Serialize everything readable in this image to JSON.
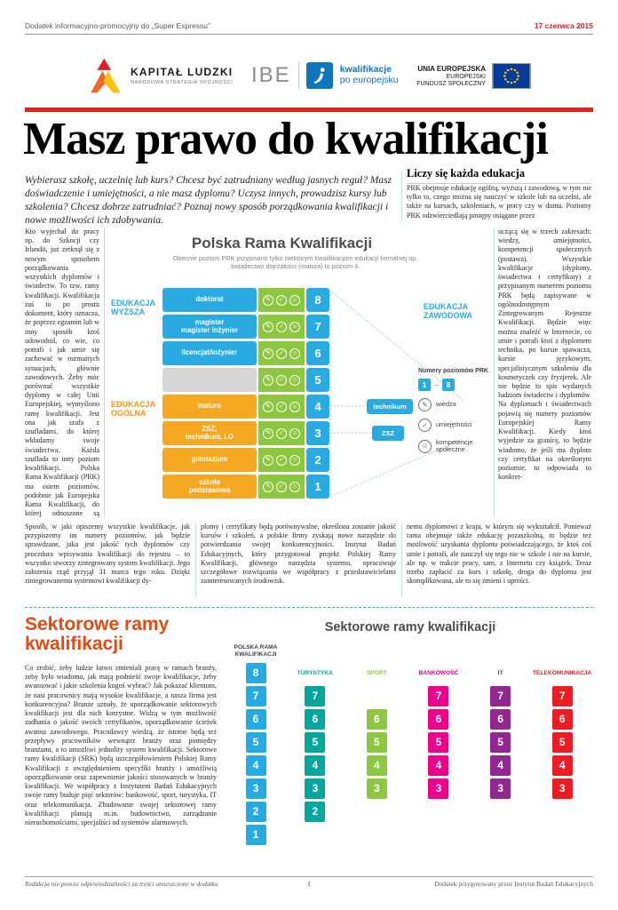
{
  "topbar": {
    "supplement": "Dodatek informacyjno-promocyjny do „Super Expressu”",
    "date": "17 czerwca 2015"
  },
  "logos": {
    "kapital_ludzki": {
      "title": "KAPITAŁ LUDZKI",
      "subtitle": "NARODOWA STRATEGIA SPÓJNOŚCI"
    },
    "ibe": {
      "name": "IBE",
      "tagline_line1": "kwalifikacje",
      "tagline_line2": "po europejsku"
    },
    "ue": {
      "line1": "UNIA EUROPEJSKA",
      "line2": "EUROPEJSKI",
      "line3": "FUNDUSZ SPOŁECZNY"
    }
  },
  "headline": "Masz prawo do kwalifikacji",
  "lead": "Wybierasz szkołę, uczelnię lub kurs? Chcesz być zatrudniany według jasnych reguł? Masz doświadczenie i umiejętności, a nie masz dyplomu? Uczysz innych, prowadzisz kursy lub szkolenia? Chcesz dobrze zatrudniać? Poznaj nowy sposób porządkowania kwalifikacji i nowe możliwości ich zdobywania.",
  "article": {
    "right_heading": "Liczy się każda edukacja",
    "right_top": "PRK obejmuje edukację ogólną, wyższą i zawodową, w tym nie tylko to, czego można się nauczyć w szkole lub na uczelni, ale także na kursach, szkoleniach, w pracy czy w domu. Poziomy PRK odzwierciedlają postępy osiągane przez",
    "right_col": "uczącą się w trzech zakresach: wiedzy, umiejętności, kompetencji społecznych (postawa). Wszystkie kwalifikacje (dyplomy, świadectwa i certyfikaty) z przypisanym numerem poziomu PRK będą zapisywane w ogólnodostępnym Zintegrowanym Rejestrze Kwalifikacji. Będzie więc można znaleźć w Internecie, co umie i potrafi ktoś z dyplomem technika, po kursie spawacza, kursie językowym, specjalistycznym szkoleniu dla kosmetyczek czy fryzjerek. Ale nie będzie to spis wydanych ludziom świadectw i dyplomów. Na dyplomach i świadectwach pojawią się numery poziomów Europejskiej Ramy Kwalifikacji. Kiedy ktoś wyjedzie za granicę, to będzie wiadomo, że jeśli ma dyplom czy certyfikat na określonym poziomie, to odpowiada to konkret-",
    "left_col": "Kto wyjechał do pracy np. do Szkocji czy Irlandii, już zetknął się z nowym sposobem porządkowania wszystkich dyplomów i świadectw. To tzw. ramy kwalifikacji. Kwalifikacja zaś to po prostu dokument, który oznacza, że poprzez egzamin lub w inny sposób ktoś udowodnił, co wie, co potrafi i jak umie się zachować w rozmaitych sytuacjach, głównie zawodowych. Żeby móc porównać wszystkie dyplomy w całej Unii Europejskiej, wymyślono ramę kwalifikacji. Jest ona jak szafa z szufladami, do której wkładamy swoje świadectwa. Każda szuflada to inny poziom kwalifikacji. Polska Rama Kwalifikacji (PRK) ma osiem poziomów, podobnie jak Europejska Rama Kwalifikacji, do której odnoszone są kwalifikacje ze wszystkich krajów.",
    "left_col_2": "Sposób, w jaki opiszemy wszystkie kwalifikacje, jak przypiszemy im numery poziomów, jak będzie sprawdzane, jaka jest jakość tych dyplomów czy procedura wpisywania kwalifikacji do rejestru – to wszystko stworzy zintegrowany system kwalifikacji. Jego założenia rząd przyjął 31 marca tego roku. Dzięki zintegrowanemu systemowi kwalifikacji dy-",
    "bottom_mid": "plomy i certyfikaty będą porównywalne, określona zostanie jakość kursów i szkoleń, a polskie firmy zyskają nowe narzędzie do potwierdzania swojej konkurencyjności. Instytut Badań Edukacyjnych, który przygotował projekt Polskiej Ramy Kwalifikacji, głównego narzędzia systemu, opracowuje szczegółowe rozwiązania we współpracy z przedstawicielami zainteresowanych środowisk.",
    "bottom_right": "nemu dyplomowi z kraju, w którym się wykształcił. Ponieważ rama obejmuje także edukację pozaszkolną, to będzie też możliwość uzyskania dyplomu poświadczającego, że ktoś coś umie i potrafi, ale nauczył się tego nie w szkole i nie na kursie, ale np. w trakcie pracy, sam, z Internetu czy książek. Teraz trzeba zapłacić za kurs i szkołę, droga do dyplomu jest skomplikowana, ale to się zmieni i uprości."
  },
  "prk": {
    "title": "Polska Rama Kwalifikacji",
    "subtitle": "Obecnie poziom PRK przypisano tylko niektórym kwalifikacjom edukacji formalnej np. świadectwo dojrzałości (matura) to poziom 4.",
    "group_higher": "EDUKACJA\nWYŻSZA",
    "group_general": "EDUKACJA\nOGÓLNA",
    "group_vocational": "EDUKACJA\nZAWODOWA",
    "levels": [
      {
        "level": 8,
        "label": "doktorat",
        "type": "higher"
      },
      {
        "level": 7,
        "label": "magister\nmagister inżynier",
        "type": "higher"
      },
      {
        "level": 6,
        "label": "licencjat/inżynier",
        "type": "higher"
      },
      {
        "level": 5,
        "label": "",
        "type": "empty"
      },
      {
        "level": 4,
        "label": "matura",
        "type": "general",
        "vocational": "technikum"
      },
      {
        "level": 3,
        "label": "ZSZ,\ntechnikum, LO",
        "type": "general",
        "vocational": "ZSZ"
      },
      {
        "level": 2,
        "label": "gimnazjum",
        "type": "general"
      },
      {
        "level": 1,
        "label": "szkoła\npodstawowa",
        "type": "general"
      }
    ],
    "legend": {
      "levels_label": "Numery poziomów PRK",
      "range_from": "1",
      "range_separator": "–",
      "range_to": "8",
      "items": [
        {
          "icon": "knowledge-icon",
          "glyph": "✎",
          "label": "wiedza"
        },
        {
          "icon": "skills-icon",
          "glyph": "✓",
          "label": "umiejętności"
        },
        {
          "icon": "social-competence-icon",
          "glyph": "☺",
          "label": "kompetencje\nspołeczne"
        }
      ]
    }
  },
  "sector_section": {
    "heading": "Sektorowe ramy\nkwalifikacji",
    "body": "Co zrobić, żeby ludzie łatwo zmieniali pracę w ramach branży, żeby było wiadomo, jak mają podnieść swoje kwalifikacje, żeby awansować i jakie szkolenia kogoś wybrać? Jak pokazać klientom, że nasi pracownicy mają wysokie kwalifikacje, a nasza firma jest konkurencyjna? Branże uznały, że uporządkowanie sektorowych kwalifikacji jest dla nich korzystne. Widzą w tym możliwość zadbania o jakość swoich certyfikatów, uporządkowanie ścieżek awansu zawodowego. Pracodawcy wiedzą, że istotne będą też przepływy pracowników wewnątrz branży oraz pomiędzy branżami, a to umożliwi jednolity system kwalifikacji. Sektorowe ramy kwalifikacji (SRK) będą uszczegółowieniem Polskiej Ramy Kwalifikacji z uwzględnieniem specyfiki branży i umożliwią uporządkowanie oraz zapewnienie jakości stosowanych w branży kwalifikacji. We współpracy z Instytutem Badań Edukacyjnych swoje ramy buduje pięć sektorów: bankowość, sport, turystyka, IT oraz telekomunikacja. Zbudowanie swojej sektorowej ramy kwalifikacji planują m.in. budownictwo, zarządzanie nieruchomościami, specjaliści od systemów alarmowych."
  },
  "chart_data": {
    "type": "table",
    "title": "Sektorowe ramy kwalifikacji",
    "prk_label": "POLSKA RAMA\nKWALIFIKACJI",
    "prk_color": "#27aae1",
    "levels": [
      8,
      7,
      6,
      5,
      4,
      3,
      2,
      1
    ],
    "columns": [
      {
        "label": "TURYSTYKA",
        "color": "#00a79d",
        "levels": [
          7,
          6,
          5,
          4,
          3,
          2
        ]
      },
      {
        "label": "SPORT",
        "color": "#8dc63f",
        "levels": [
          6,
          5,
          4,
          3
        ]
      },
      {
        "label": "BANKOWOŚĆ",
        "color": "#ec008c",
        "levels": [
          7,
          6,
          5,
          4,
          3
        ]
      },
      {
        "label": "IT",
        "color": "#92278f",
        "levels": [
          7,
          6,
          5,
          4,
          3
        ]
      },
      {
        "label": "TELEKOMUNIKACJA",
        "color": "#ed1c24",
        "levels": [
          7,
          6,
          5,
          4,
          3
        ]
      }
    ]
  },
  "footer": {
    "left": "Redakcja nie ponosi odpowiedzialności za treści umieszczone w dodatku",
    "page_number": "1",
    "right": "Dodatek przygotowany przez Instytut Badań Edukacyjnych"
  },
  "colors": {
    "accent_red": "#e2231a",
    "date_red": "#d2232a",
    "section_heading_red": "#e8470f",
    "prk_blue": "#29abe2",
    "prk_orange": "#f7a823",
    "prk_green": "#8dc63f",
    "prk_gray": "#d4d5d7"
  }
}
